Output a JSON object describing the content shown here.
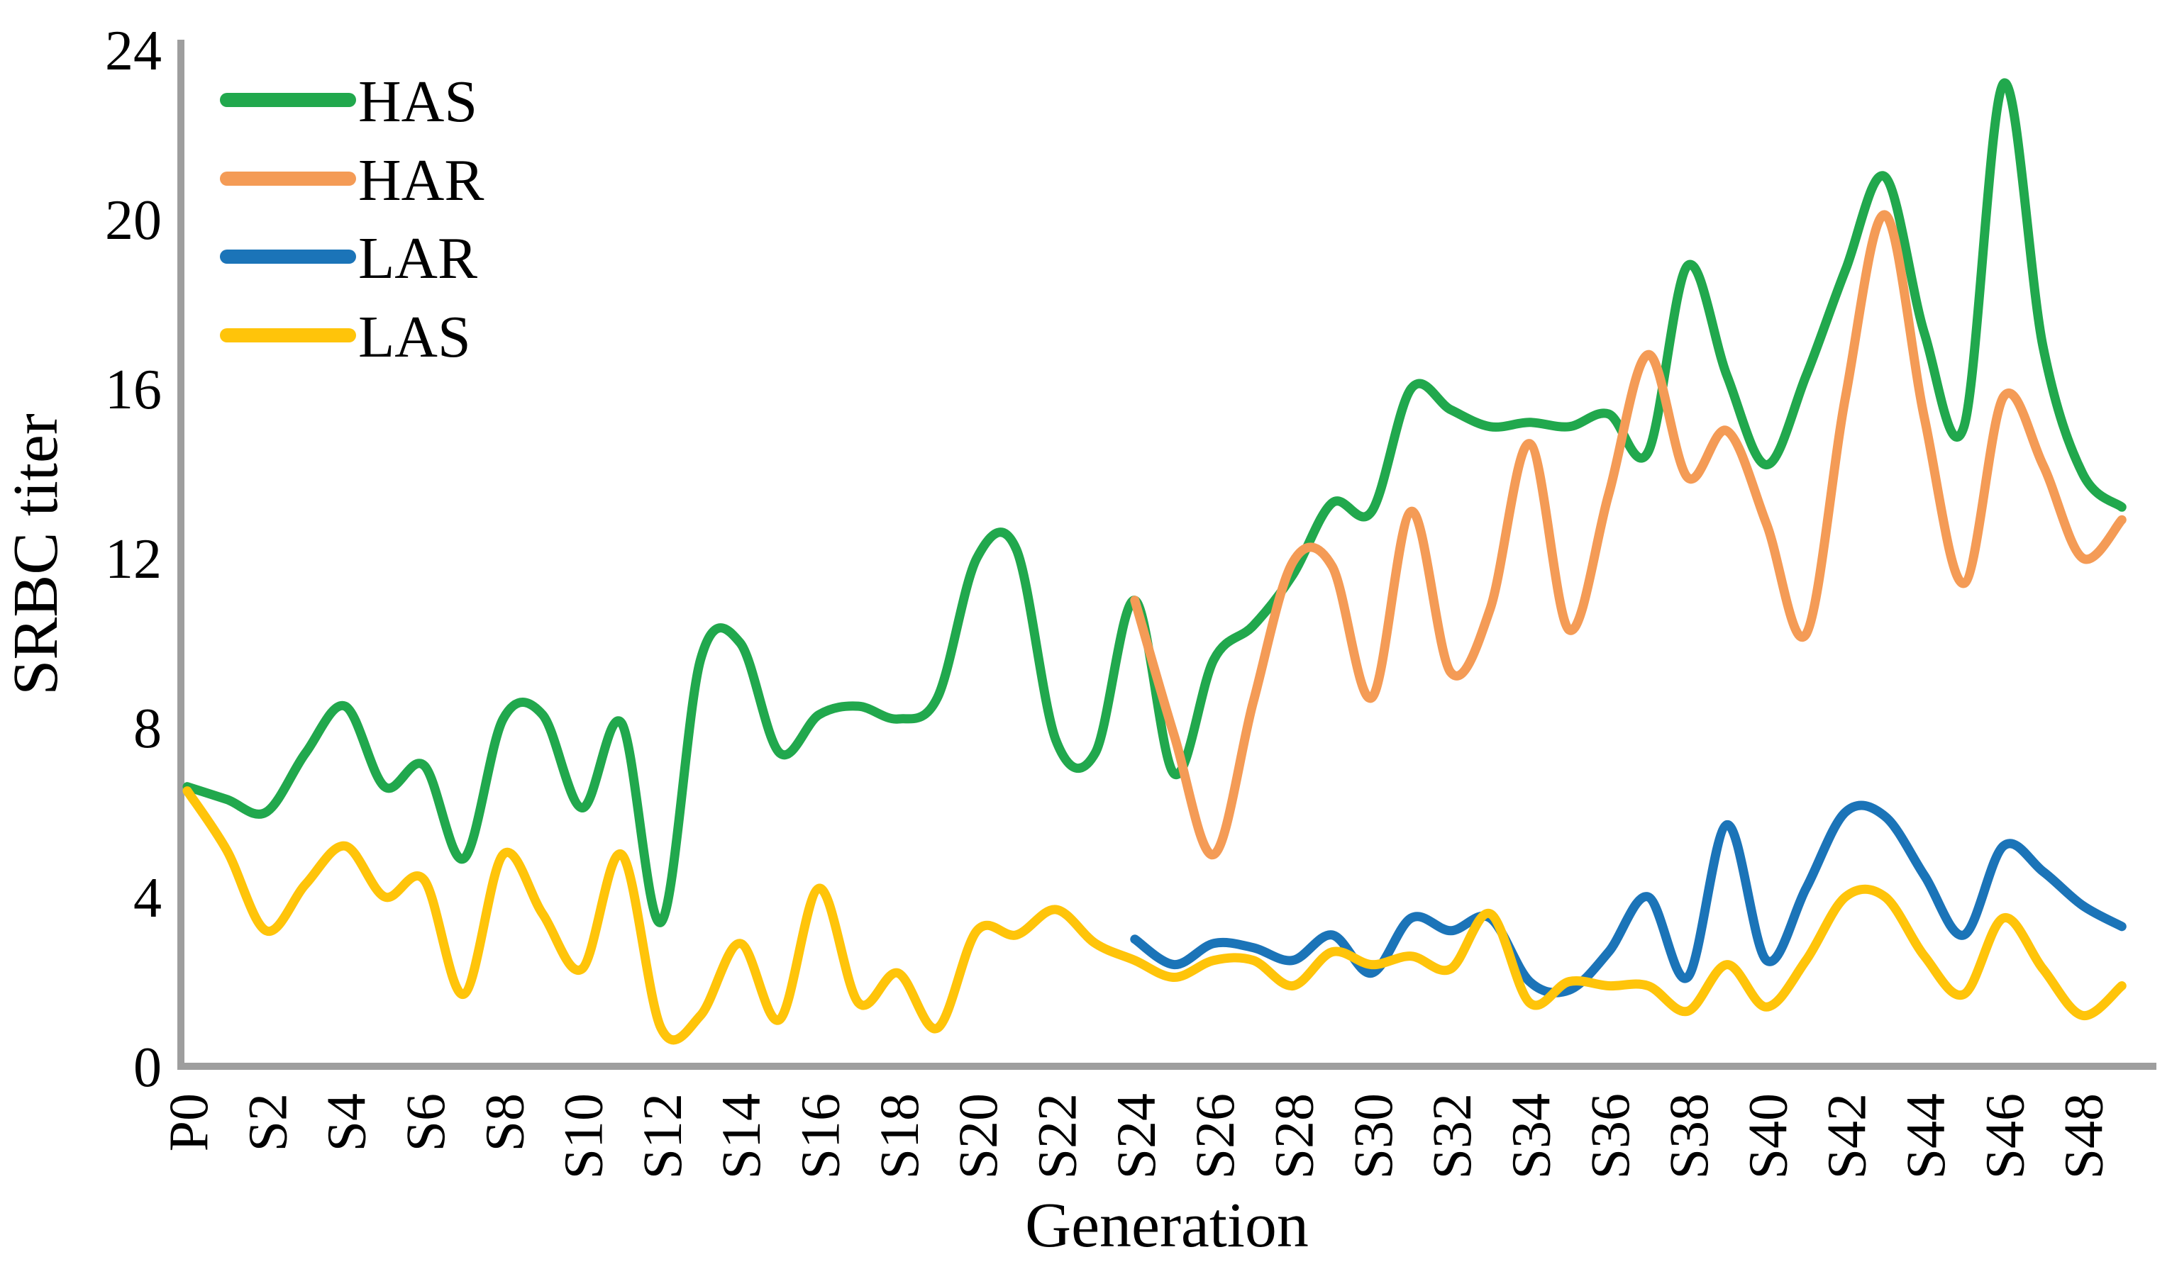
{
  "chart_data": {
    "type": "line",
    "xlabel": "Generation",
    "ylabel": "SRBC titer",
    "ylim": [
      0,
      24
    ],
    "yticks": [
      0,
      4,
      8,
      12,
      16,
      20,
      24
    ],
    "x_tick_labels": [
      "P0",
      "S2",
      "S4",
      "S6",
      "S8",
      "S10",
      "S12",
      "S14",
      "S16",
      "S18",
      "S20",
      "S22",
      "S24",
      "S26",
      "S28",
      "S30",
      "S32",
      "S34",
      "S36",
      "S38",
      "S40",
      "S42",
      "S44",
      "S46",
      "S48"
    ],
    "x_unit_step": 1,
    "generations_total": 50,
    "grid": false,
    "legend_position": "top-left-inside",
    "series": [
      {
        "name": "HAS",
        "color": "#21A84D",
        "start_gen": 0,
        "values": [
          6.6,
          6.3,
          6.0,
          7.4,
          8.5,
          6.6,
          7.1,
          4.9,
          8.2,
          8.3,
          6.1,
          8.1,
          3.4,
          9.6,
          10.0,
          7.4,
          8.3,
          8.5,
          8.2,
          8.7,
          12.0,
          12.2,
          7.7,
          7.4,
          11.0,
          6.9,
          9.6,
          10.4,
          11.6,
          13.3,
          13.1,
          16.0,
          15.5,
          15.1,
          15.2,
          15.1,
          15.4,
          14.5,
          18.9,
          16.3,
          14.2,
          16.3,
          18.8,
          21.0,
          17.3,
          15.1,
          23.2,
          17.0,
          14.0,
          13.2
        ]
      },
      {
        "name": "HAR",
        "color": "#F49B56",
        "start_gen": 24,
        "values": [
          11.0,
          7.8,
          5.0,
          8.6,
          11.9,
          11.8,
          8.7,
          13.1,
          9.3,
          10.8,
          14.7,
          10.3,
          13.5,
          16.8,
          13.9,
          15.0,
          12.8,
          10.2,
          15.8,
          20.1,
          15.3,
          11.4,
          15.8,
          14.2,
          12.0,
          12.9
        ]
      },
      {
        "name": "LAR",
        "color": "#1B74B8",
        "start_gen": 24,
        "values": [
          3.0,
          2.4,
          2.9,
          2.8,
          2.5,
          3.1,
          2.2,
          3.5,
          3.2,
          3.5,
          2.0,
          1.8,
          2.7,
          4.0,
          2.1,
          5.7,
          2.5,
          4.2,
          6.0,
          5.9,
          4.5,
          3.1,
          5.2,
          4.6,
          3.8,
          3.3
        ]
      },
      {
        "name": "LAS",
        "color": "#FFC40A",
        "start_gen": 0,
        "values": [
          6.5,
          5.1,
          3.2,
          4.3,
          5.2,
          4.0,
          4.4,
          1.7,
          5.0,
          3.6,
          2.3,
          5.0,
          0.9,
          1.2,
          2.9,
          1.1,
          4.2,
          1.5,
          2.2,
          0.9,
          3.2,
          3.1,
          3.7,
          2.9,
          2.5,
          2.1,
          2.5,
          2.5,
          1.9,
          2.7,
          2.4,
          2.6,
          2.3,
          3.6,
          1.5,
          2.0,
          1.9,
          1.9,
          1.3,
          2.4,
          1.4,
          2.5,
          4.0,
          4.0,
          2.6,
          1.7,
          3.5,
          2.3,
          1.2,
          1.9
        ]
      }
    ],
    "legend": [
      "HAS",
      "HAR",
      "LAR",
      "LAS"
    ],
    "axis_color": "#9E9E9E"
  }
}
